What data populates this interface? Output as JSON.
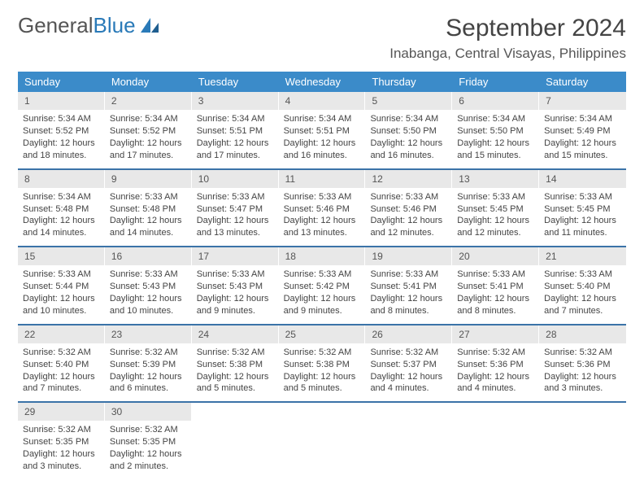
{
  "logo": {
    "text_general": "General",
    "text_blue": "Blue"
  },
  "header": {
    "month_title": "September 2024",
    "location": "Inabanga, Central Visayas, Philippines"
  },
  "colors": {
    "header_bg": "#3b8bc9",
    "header_text": "#ffffff",
    "daynum_bg": "#e8e8e8",
    "week_border": "#3b73a8",
    "text": "#444444",
    "logo_gray": "#555555",
    "logo_blue": "#2a7ab8"
  },
  "typography": {
    "month_title_size": 30,
    "location_size": 17,
    "weekday_size": 13,
    "daynum_size": 12,
    "body_size": 11
  },
  "weekdays": [
    "Sunday",
    "Monday",
    "Tuesday",
    "Wednesday",
    "Thursday",
    "Friday",
    "Saturday"
  ],
  "weeks": [
    [
      {
        "n": "1",
        "sr": "5:34 AM",
        "ss": "5:52 PM",
        "dl": "12 hours and 18 minutes."
      },
      {
        "n": "2",
        "sr": "5:34 AM",
        "ss": "5:52 PM",
        "dl": "12 hours and 17 minutes."
      },
      {
        "n": "3",
        "sr": "5:34 AM",
        "ss": "5:51 PM",
        "dl": "12 hours and 17 minutes."
      },
      {
        "n": "4",
        "sr": "5:34 AM",
        "ss": "5:51 PM",
        "dl": "12 hours and 16 minutes."
      },
      {
        "n": "5",
        "sr": "5:34 AM",
        "ss": "5:50 PM",
        "dl": "12 hours and 16 minutes."
      },
      {
        "n": "6",
        "sr": "5:34 AM",
        "ss": "5:50 PM",
        "dl": "12 hours and 15 minutes."
      },
      {
        "n": "7",
        "sr": "5:34 AM",
        "ss": "5:49 PM",
        "dl": "12 hours and 15 minutes."
      }
    ],
    [
      {
        "n": "8",
        "sr": "5:34 AM",
        "ss": "5:48 PM",
        "dl": "12 hours and 14 minutes."
      },
      {
        "n": "9",
        "sr": "5:33 AM",
        "ss": "5:48 PM",
        "dl": "12 hours and 14 minutes."
      },
      {
        "n": "10",
        "sr": "5:33 AM",
        "ss": "5:47 PM",
        "dl": "12 hours and 13 minutes."
      },
      {
        "n": "11",
        "sr": "5:33 AM",
        "ss": "5:46 PM",
        "dl": "12 hours and 13 minutes."
      },
      {
        "n": "12",
        "sr": "5:33 AM",
        "ss": "5:46 PM",
        "dl": "12 hours and 12 minutes."
      },
      {
        "n": "13",
        "sr": "5:33 AM",
        "ss": "5:45 PM",
        "dl": "12 hours and 12 minutes."
      },
      {
        "n": "14",
        "sr": "5:33 AM",
        "ss": "5:45 PM",
        "dl": "12 hours and 11 minutes."
      }
    ],
    [
      {
        "n": "15",
        "sr": "5:33 AM",
        "ss": "5:44 PM",
        "dl": "12 hours and 10 minutes."
      },
      {
        "n": "16",
        "sr": "5:33 AM",
        "ss": "5:43 PM",
        "dl": "12 hours and 10 minutes."
      },
      {
        "n": "17",
        "sr": "5:33 AM",
        "ss": "5:43 PM",
        "dl": "12 hours and 9 minutes."
      },
      {
        "n": "18",
        "sr": "5:33 AM",
        "ss": "5:42 PM",
        "dl": "12 hours and 9 minutes."
      },
      {
        "n": "19",
        "sr": "5:33 AM",
        "ss": "5:41 PM",
        "dl": "12 hours and 8 minutes."
      },
      {
        "n": "20",
        "sr": "5:33 AM",
        "ss": "5:41 PM",
        "dl": "12 hours and 8 minutes."
      },
      {
        "n": "21",
        "sr": "5:33 AM",
        "ss": "5:40 PM",
        "dl": "12 hours and 7 minutes."
      }
    ],
    [
      {
        "n": "22",
        "sr": "5:32 AM",
        "ss": "5:40 PM",
        "dl": "12 hours and 7 minutes."
      },
      {
        "n": "23",
        "sr": "5:32 AM",
        "ss": "5:39 PM",
        "dl": "12 hours and 6 minutes."
      },
      {
        "n": "24",
        "sr": "5:32 AM",
        "ss": "5:38 PM",
        "dl": "12 hours and 5 minutes."
      },
      {
        "n": "25",
        "sr": "5:32 AM",
        "ss": "5:38 PM",
        "dl": "12 hours and 5 minutes."
      },
      {
        "n": "26",
        "sr": "5:32 AM",
        "ss": "5:37 PM",
        "dl": "12 hours and 4 minutes."
      },
      {
        "n": "27",
        "sr": "5:32 AM",
        "ss": "5:36 PM",
        "dl": "12 hours and 4 minutes."
      },
      {
        "n": "28",
        "sr": "5:32 AM",
        "ss": "5:36 PM",
        "dl": "12 hours and 3 minutes."
      }
    ],
    [
      {
        "n": "29",
        "sr": "5:32 AM",
        "ss": "5:35 PM",
        "dl": "12 hours and 3 minutes."
      },
      {
        "n": "30",
        "sr": "5:32 AM",
        "ss": "5:35 PM",
        "dl": "12 hours and 2 minutes."
      },
      {
        "n": "",
        "sr": "",
        "ss": "",
        "dl": ""
      },
      {
        "n": "",
        "sr": "",
        "ss": "",
        "dl": ""
      },
      {
        "n": "",
        "sr": "",
        "ss": "",
        "dl": ""
      },
      {
        "n": "",
        "sr": "",
        "ss": "",
        "dl": ""
      },
      {
        "n": "",
        "sr": "",
        "ss": "",
        "dl": ""
      }
    ]
  ],
  "labels": {
    "sunrise_prefix": "Sunrise: ",
    "sunset_prefix": "Sunset: ",
    "daylight_prefix": "Daylight: "
  }
}
